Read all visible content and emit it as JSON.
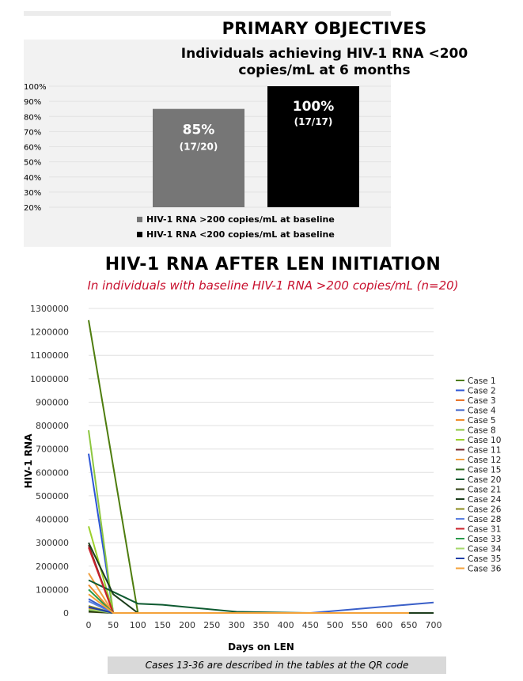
{
  "primary_title": "PRIMARY OBJECTIVES",
  "chart2_title": "HIV-1 RNA AFTER LEN INITIATION",
  "chart2_subtitle": "In individuals with baseline HIV-1 RNA >200 copies/mL (n=20)",
  "footnote": "Cases 13-36 are described in the tables at the QR code",
  "chart_data": [
    {
      "type": "bar",
      "title_lines": [
        "Individuals achieving HIV-1 RNA <200",
        "copies/mL at 6 months"
      ],
      "ylim": [
        20,
        100
      ],
      "yticks": [
        20,
        30,
        40,
        50,
        60,
        70,
        80,
        90,
        100
      ],
      "tick_suffix": "%",
      "bars": [
        {
          "value": 85,
          "label": "85%",
          "sublabel": "(17/20)",
          "color": "#767676"
        },
        {
          "value": 100,
          "label": "100%",
          "sublabel": "(17/17)",
          "color": "#000000"
        }
      ],
      "legend": [
        {
          "label": "HIV-1 RNA >200 copies/mL at baseline",
          "color": "#767676"
        },
        {
          "label": "HIV-1 RNA <200 copies/mL at baseline",
          "color": "#000000"
        }
      ]
    },
    {
      "type": "line",
      "xlabel": "Days on LEN",
      "ylabel": "HIV-1 RNA",
      "xlim": [
        0,
        700
      ],
      "ylim": [
        0,
        1300000
      ],
      "xticks": [
        0,
        50,
        100,
        150,
        200,
        250,
        300,
        350,
        400,
        450,
        500,
        550,
        600,
        650,
        700
      ],
      "yticks": [
        0,
        100000,
        200000,
        300000,
        400000,
        500000,
        600000,
        700000,
        800000,
        900000,
        1000000,
        1100000,
        1200000,
        1300000
      ],
      "grid": true,
      "legend_position": "right",
      "series": [
        {
          "name": "Case 1",
          "color": "#4e7d0e",
          "points": [
            [
              0,
              1250000
            ],
            [
              100,
              0
            ]
          ]
        },
        {
          "name": "Case 2",
          "color": "#2c55d6",
          "points": [
            [
              0,
              680000
            ],
            [
              50,
              0
            ]
          ]
        },
        {
          "name": "Case 3",
          "color": "#e8742a",
          "points": [
            [
              0,
              20000
            ],
            [
              50,
              0
            ]
          ]
        },
        {
          "name": "Case 4",
          "color": "#3a5fc8",
          "points": [
            [
              0,
              60000
            ],
            [
              50,
              0
            ],
            [
              450,
              0
            ],
            [
              700,
              45000
            ]
          ]
        },
        {
          "name": "Case 5",
          "color": "#f08c2c",
          "points": [
            [
              0,
              120000
            ],
            [
              50,
              0
            ]
          ]
        },
        {
          "name": "Case 8",
          "color": "#8cc63f",
          "points": [
            [
              0,
              780000
            ],
            [
              50,
              0
            ]
          ]
        },
        {
          "name": "Case 10",
          "color": "#9bd02b",
          "points": [
            [
              0,
              370000
            ],
            [
              50,
              0
            ]
          ]
        },
        {
          "name": "Case 11",
          "color": "#7a2a2a",
          "points": [
            [
              0,
              290000
            ],
            [
              50,
              0
            ]
          ]
        },
        {
          "name": "Case 12",
          "color": "#f0a040",
          "points": [
            [
              0,
              170000
            ],
            [
              50,
              0
            ]
          ]
        },
        {
          "name": "Case 15",
          "color": "#2e6b1a",
          "points": [
            [
              0,
              10000
            ],
            [
              50,
              0
            ]
          ]
        },
        {
          "name": "Case 20",
          "color": "#0e5a30",
          "points": [
            [
              0,
              140000
            ],
            [
              50,
              90000
            ],
            [
              100,
              40000
            ],
            [
              150,
              35000
            ],
            [
              300,
              5000
            ],
            [
              450,
              0
            ]
          ]
        },
        {
          "name": "Case 21",
          "color": "#2f3f12",
          "points": [
            [
              0,
              5000
            ],
            [
              50,
              0
            ]
          ]
        },
        {
          "name": "Case 24",
          "color": "#1c3d1c",
          "points": [
            [
              0,
              300000
            ],
            [
              50,
              80000
            ],
            [
              100,
              0
            ],
            [
              700,
              0
            ]
          ]
        },
        {
          "name": "Case 26",
          "color": "#8a8a1a",
          "points": [
            [
              0,
              30000
            ],
            [
              50,
              0
            ]
          ]
        },
        {
          "name": "Case 28",
          "color": "#5a7fe0",
          "points": [
            [
              0,
              50000
            ],
            [
              50,
              0
            ]
          ]
        },
        {
          "name": "Case 31",
          "color": "#c8202a",
          "points": [
            [
              0,
              280000
            ],
            [
              50,
              0
            ]
          ]
        },
        {
          "name": "Case 33",
          "color": "#2a9a4a",
          "points": [
            [
              0,
              100000
            ],
            [
              50,
              0
            ]
          ]
        },
        {
          "name": "Case 34",
          "color": "#a5d86a",
          "points": [
            [
              0,
              15000
            ],
            [
              50,
              0
            ]
          ]
        },
        {
          "name": "Case 35",
          "color": "#1e3fa8",
          "points": [
            [
              0,
              25000
            ],
            [
              50,
              0
            ]
          ]
        },
        {
          "name": "Case 36",
          "color": "#f4a23a",
          "points": [
            [
              0,
              80000
            ],
            [
              50,
              0
            ],
            [
              100,
              0
            ],
            [
              650,
              0
            ]
          ]
        }
      ]
    }
  ]
}
